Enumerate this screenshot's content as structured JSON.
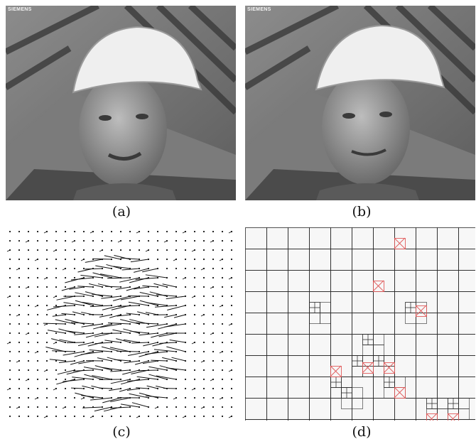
{
  "figure": {
    "panels": [
      {
        "id": "a",
        "caption": "(a)",
        "content": "video frame",
        "watermark": "SIEMENS"
      },
      {
        "id": "b",
        "caption": "(b)",
        "content": "video frame",
        "watermark": "SIEMENS"
      },
      {
        "id": "c",
        "caption": "(c)",
        "content": "motion vector field"
      },
      {
        "id": "d",
        "caption": "(d)",
        "content": "quadtree block partition"
      }
    ],
    "colors": {
      "background": "#ffffff",
      "grid_line": "#2a2a2a",
      "highlight": "#e05a5a"
    }
  }
}
